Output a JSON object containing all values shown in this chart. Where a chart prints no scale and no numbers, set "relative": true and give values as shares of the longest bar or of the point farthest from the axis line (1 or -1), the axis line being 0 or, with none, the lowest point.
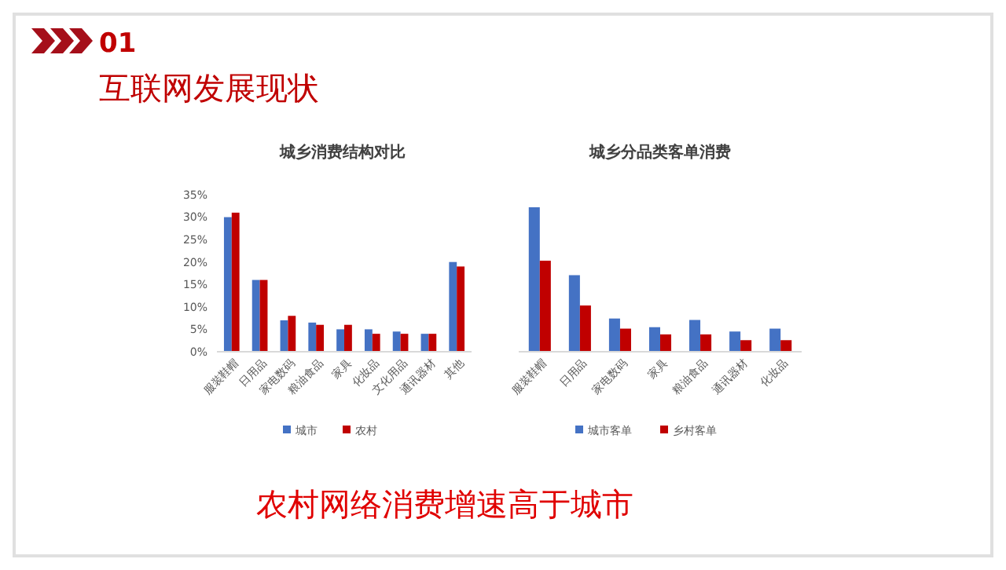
{
  "chart_data": [
    {
      "type": "other",
      "title": "互联网发展现状",
      "annotations": [
        "01",
        "农村网络消费增速高于城市"
      ]
    },
    {
      "type": "bar",
      "title": "城乡消费结构对比",
      "categories": [
        "服装鞋帽",
        "日用品",
        "家电数码",
        "粮油食品",
        "家具",
        "化妆品",
        "文化用品",
        "通讯器材",
        "其他"
      ],
      "series": [
        {
          "name": "城市",
          "color": "#4472c4",
          "values": [
            30,
            16,
            7,
            6.5,
            5,
            5,
            4.5,
            4,
            20
          ]
        },
        {
          "name": "农村",
          "color": "#c00000",
          "values": [
            31,
            16,
            8,
            6,
            6,
            4,
            4,
            4,
            19
          ]
        }
      ],
      "ylim": [
        0,
        35
      ],
      "yticks": [
        {
          "value": 0,
          "label": "0%"
        },
        {
          "value": 5,
          "label": "5%"
        },
        {
          "value": 10,
          "label": "10%"
        },
        {
          "value": 15,
          "label": "15%"
        },
        {
          "value": 20,
          "label": "20%"
        },
        {
          "value": 25,
          "label": "25%"
        },
        {
          "value": 30,
          "label": "30%"
        },
        {
          "value": 35,
          "label": "35%"
        }
      ],
      "legend": "bottom"
    },
    {
      "type": "bar",
      "title": "城乡分品类客单消费",
      "relative": true,
      "categories": [
        "服装鞋帽",
        "日用品",
        "家电数码",
        "家具",
        "粮油食品",
        "通讯器材",
        "化妆品"
      ],
      "series": [
        {
          "name": "城市客单",
          "color": "#4472c4",
          "values": [
            1,
            0.53,
            0.23,
            0.17,
            0.22,
            0.14,
            0.16
          ]
        },
        {
          "name": "乡村客单",
          "color": "#c00000",
          "values": [
            0.63,
            0.32,
            0.16,
            0.12,
            0.12,
            0.08,
            0.08
          ]
        }
      ],
      "legend": "bottom"
    }
  ]
}
